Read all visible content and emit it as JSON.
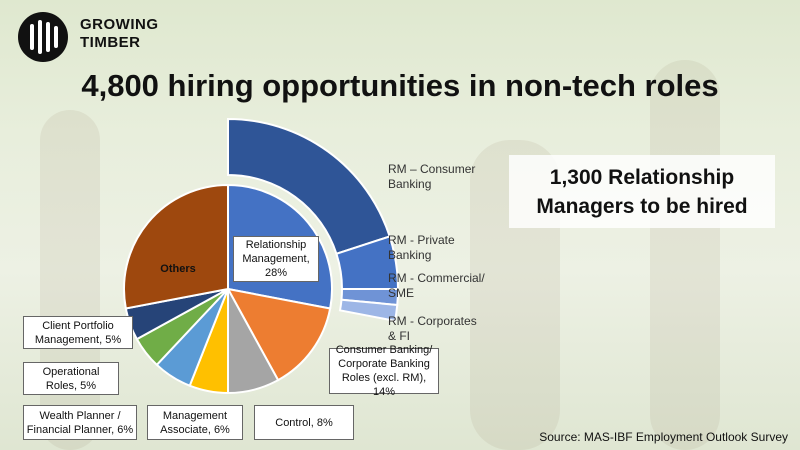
{
  "brand": {
    "line1": "GROWING",
    "line2": "TIMBER"
  },
  "title": "4,800 hiring opportunities in non-tech roles",
  "callout": {
    "line1": "1,300 Relationship",
    "line2": "Managers to be hired"
  },
  "source": "Source: MAS-IBF Employment Outlook Survey",
  "chart_data": [
    {
      "type": "pie",
      "series": [
        {
          "label": "Relationship Management, 28%",
          "value": 28,
          "color": "#4472c4"
        },
        {
          "label": "Consumer Banking/ Corporate Banking Roles (excl. RM), 14%",
          "value": 14,
          "color": "#ed7d31"
        },
        {
          "label": "Control, 8%",
          "value": 8,
          "color": "#a5a5a5"
        },
        {
          "label": "Management Associate, 6%",
          "value": 6,
          "color": "#ffc000"
        },
        {
          "label": "Wealth Planner / Financial Planner, 6%",
          "value": 6,
          "color": "#5b9bd5"
        },
        {
          "label": "Operational Roles, 5%",
          "value": 5,
          "color": "#70ad47"
        },
        {
          "label": "Client Portfolio Management, 5%",
          "value": 5,
          "color": "#264478"
        },
        {
          "label": "Others",
          "value": 28,
          "color": "#9e480e"
        }
      ]
    },
    {
      "type": "pie",
      "series": [
        {
          "label": "RM – Consumer Banking",
          "value": 20,
          "color": "#2f5597"
        },
        {
          "label": "RM - Private Banking",
          "value": 5,
          "color": "#4472c4"
        },
        {
          "label": "RM - Commercial/ SME",
          "value": 1.5,
          "color": "#6f93d6"
        },
        {
          "label": "RM - Corporates & FI",
          "value": 1.5,
          "color": "#9db6e6"
        }
      ]
    }
  ]
}
